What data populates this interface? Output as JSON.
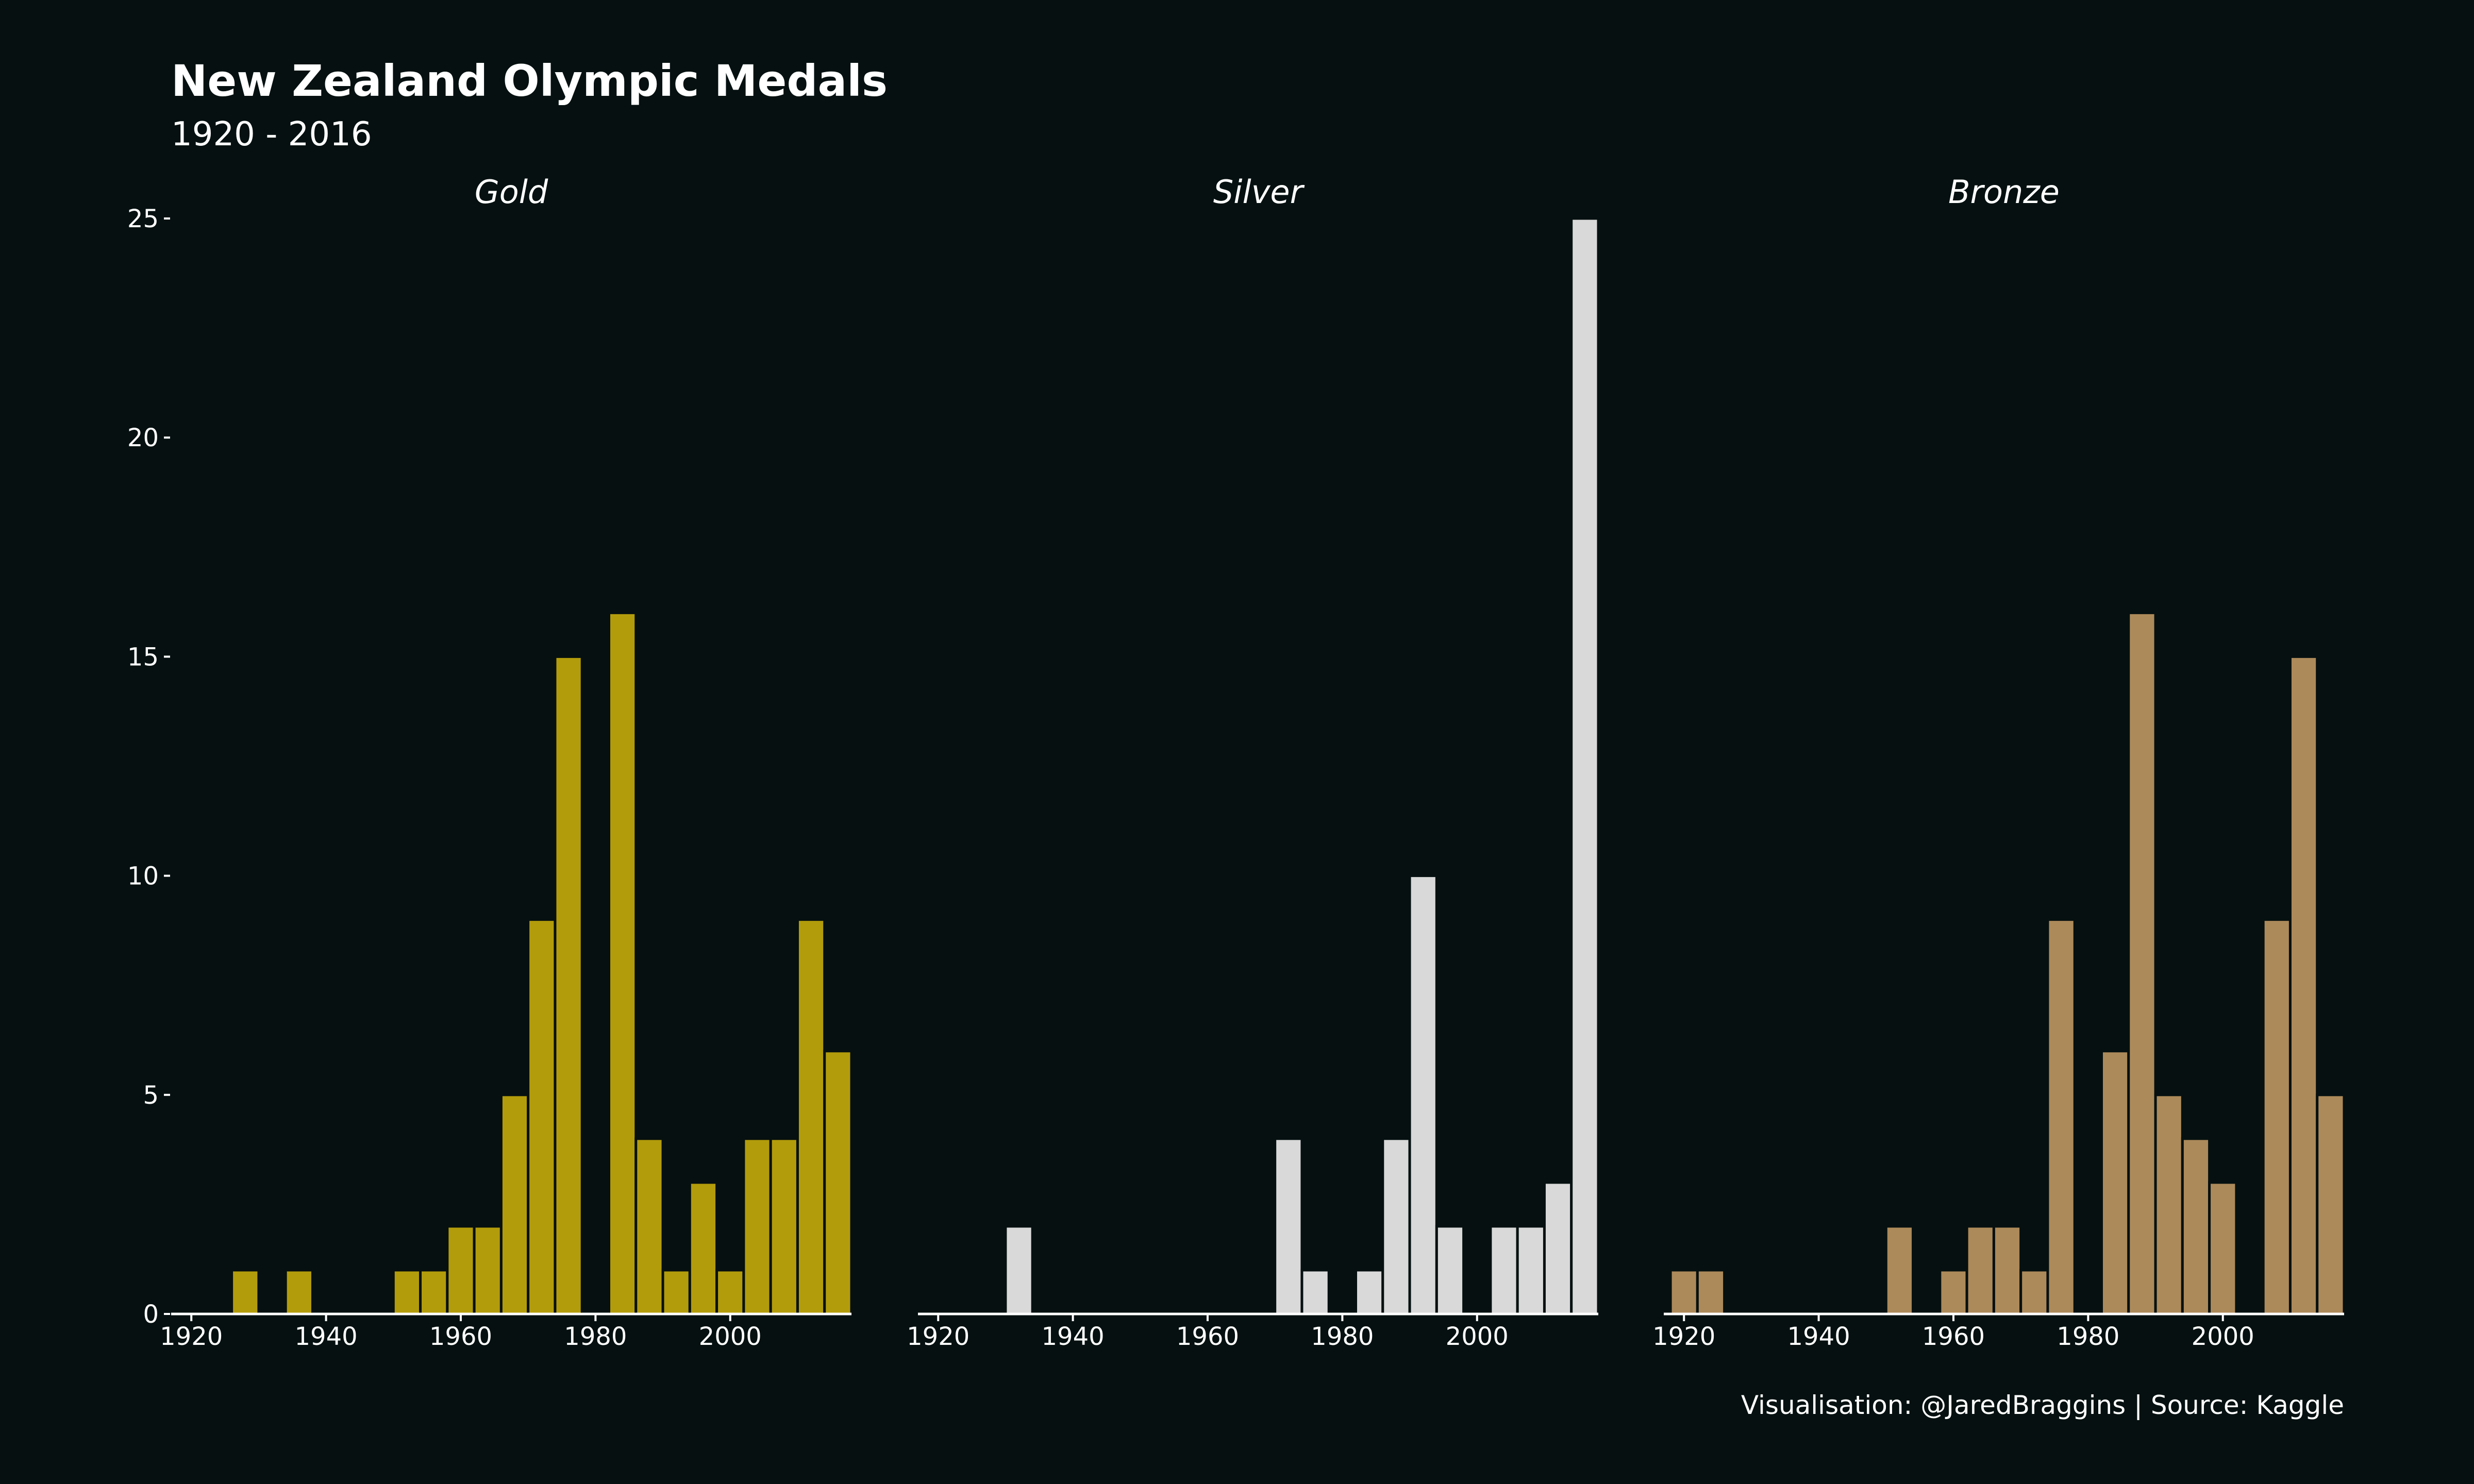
{
  "chart_data": {
    "type": "bar",
    "title": "New Zealand Olympic Medals",
    "subtitle": "1920 - 2016",
    "caption": "Visualisation: @JaredBraggins | Source: Kaggle",
    "xlabel": "",
    "ylabel": "",
    "xlim": [
      1917,
      2018
    ],
    "ylim": [
      0,
      25
    ],
    "x_ticks": [
      1920,
      1940,
      1960,
      1980,
      2000
    ],
    "y_ticks": [
      0,
      5,
      10,
      15,
      20,
      25
    ],
    "grid": false,
    "legend": "none",
    "background_color": "#061010",
    "panels": [
      {
        "name": "Gold",
        "color": "#b39c0b",
        "x": [
          1928,
          1936,
          1952,
          1956,
          1960,
          1964,
          1968,
          1972,
          1976,
          1984,
          1988,
          1992,
          1996,
          2000,
          2004,
          2008,
          2012,
          2016
        ],
        "values": [
          1,
          1,
          1,
          1,
          2,
          2,
          5,
          9,
          15,
          16,
          4,
          1,
          3,
          1,
          4,
          4,
          9,
          6
        ]
      },
      {
        "name": "Silver",
        "color": "#d9d9d9",
        "x": [
          1932,
          1972,
          1976,
          1984,
          1988,
          1992,
          1996,
          2004,
          2008,
          2012,
          2016
        ],
        "values": [
          2,
          4,
          1,
          1,
          4,
          10,
          2,
          2,
          2,
          3,
          25
        ]
      },
      {
        "name": "Bronze",
        "color": "#ad8a5a",
        "x": [
          1920,
          1924,
          1952,
          1960,
          1964,
          1968,
          1972,
          1976,
          1984,
          1988,
          1992,
          1996,
          2000,
          2008,
          2012,
          2016
        ],
        "values": [
          1,
          1,
          2,
          1,
          2,
          2,
          1,
          9,
          6,
          16,
          5,
          4,
          3,
          9,
          15,
          5
        ]
      }
    ]
  }
}
